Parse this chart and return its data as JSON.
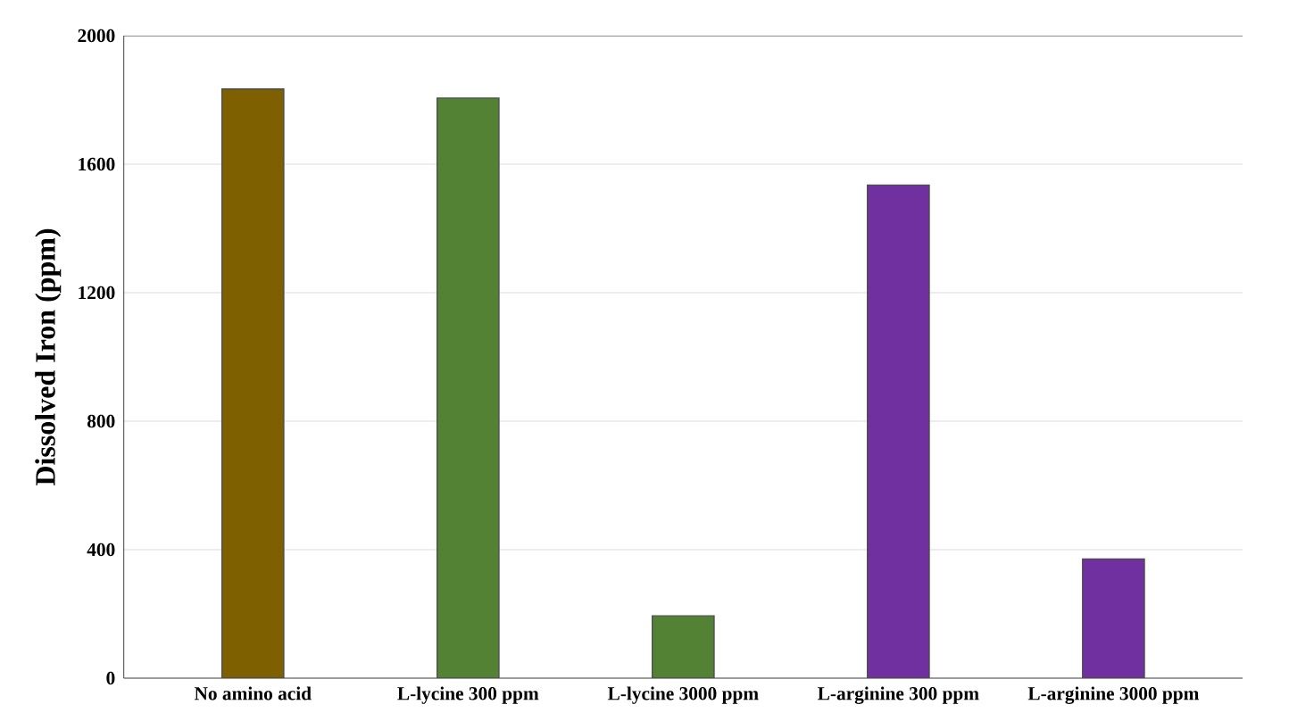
{
  "chart_data": {
    "type": "bar",
    "ylabel": "Dissolved Iron (ppm)",
    "categories": [
      "No amino acid",
      "L-lycine 300 ppm",
      "L-lycine 3000 ppm",
      "L-arginine 300 ppm",
      "L-arginine 3000 ppm"
    ],
    "values": [
      1834,
      1806,
      194,
      1535,
      371
    ],
    "colors": [
      "#7f6000",
      "#548235",
      "#548235",
      "#7030a0",
      "#7030a0"
    ],
    "ylim": [
      0,
      2000
    ],
    "yticks": [
      0,
      400,
      800,
      1200,
      1600,
      2000
    ],
    "grid": "y"
  }
}
